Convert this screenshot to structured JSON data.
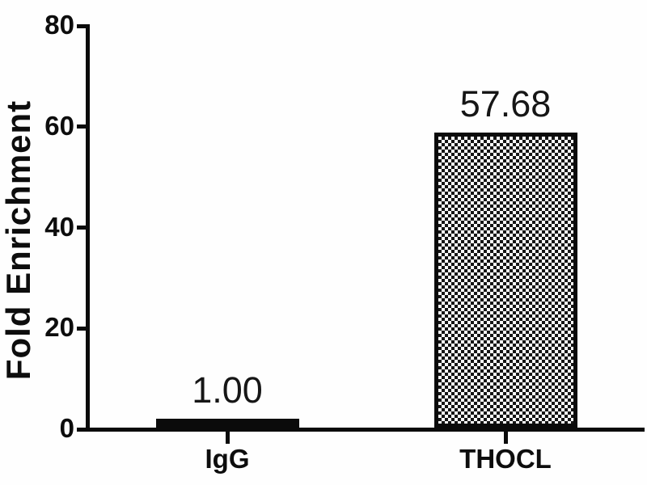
{
  "chart_data": {
    "type": "bar",
    "title": "",
    "xlabel": "",
    "ylabel": "Fold Enrichment",
    "categories": [
      "IgG",
      "THOCL"
    ],
    "values": [
      1.0,
      57.68
    ],
    "value_labels": [
      "1.00",
      "57.68"
    ],
    "series_name": "Fold Enrichment",
    "ylim": [
      0,
      80
    ],
    "yticks": [
      0,
      20,
      40,
      60,
      80
    ],
    "ytick_labels": [
      "0",
      "20",
      "40",
      "60",
      "80"
    ],
    "grid": false,
    "legend": "none",
    "bar_styles": [
      {
        "category": "IgG",
        "fill": "solid-black"
      },
      {
        "category": "THOCL",
        "fill": "checkerboard"
      }
    ],
    "colors": {
      "axis": "#0b0b0b",
      "text": "#111111",
      "bar_solid": "#0b0b0b",
      "checker_dark": "#151515",
      "checker_light": "#fafafa",
      "background": "#ffffff"
    }
  }
}
